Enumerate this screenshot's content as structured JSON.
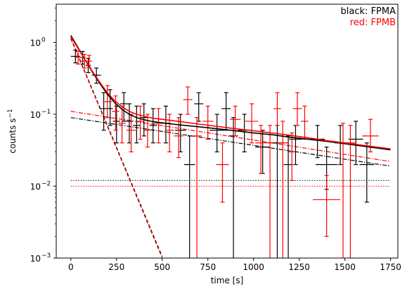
{
  "chart_data": {
    "type": "scatter",
    "xlabel": "time [s]",
    "ylabel": "counts s",
    "ylabel_sup": "−1",
    "xlim": [
      -80,
      1790
    ],
    "ylim": [
      0.001,
      3.4
    ],
    "yscale": "log",
    "grid": false,
    "x_ticks": [
      0,
      250,
      500,
      750,
      1000,
      1250,
      1500,
      1750
    ],
    "x_tick_labels": [
      "0",
      "250",
      "500",
      "750",
      "1000",
      "1250",
      "1500",
      "1750"
    ],
    "y_ticks": [
      0.001,
      0.01,
      0.1,
      1
    ],
    "y_tick_base": [
      "10",
      "10",
      "10",
      "10"
    ],
    "y_tick_exp": [
      "−3",
      "−2",
      "−1",
      "0"
    ],
    "legend": {
      "placement": "top-right",
      "entries": [
        {
          "text": "black: FPMA",
          "color": "#000000"
        },
        {
          "text": "red: FPMB",
          "color": "#ff0000"
        }
      ]
    },
    "series": [
      {
        "color": "#000000",
        "points": [
          {
            "x": 25,
            "y": 0.64,
            "xerr": 25,
            "ylo": 0.52,
            "yhi": 0.78
          },
          {
            "x": 65,
            "y": 0.62,
            "xerr": 15,
            "ylo": 0.5,
            "yhi": 0.75
          },
          {
            "x": 95,
            "y": 0.48,
            "xerr": 15,
            "ylo": 0.38,
            "yhi": 0.6
          },
          {
            "x": 140,
            "y": 0.35,
            "xerr": 25,
            "ylo": 0.27,
            "yhi": 0.44
          },
          {
            "x": 180,
            "y": 0.12,
            "xerr": 20,
            "ylo": 0.06,
            "yhi": 0.2
          },
          {
            "x": 215,
            "y": 0.12,
            "xerr": 15,
            "ylo": 0.07,
            "yhi": 0.22
          },
          {
            "x": 250,
            "y": 0.08,
            "xerr": 20,
            "ylo": 0.04,
            "yhi": 0.13
          },
          {
            "x": 290,
            "y": 0.14,
            "xerr": 20,
            "ylo": 0.08,
            "yhi": 0.2
          },
          {
            "x": 320,
            "y": 0.08,
            "xerr": 20,
            "ylo": 0.04,
            "yhi": 0.14
          },
          {
            "x": 360,
            "y": 0.07,
            "xerr": 20,
            "ylo": 0.04,
            "yhi": 0.13
          },
          {
            "x": 400,
            "y": 0.09,
            "xerr": 20,
            "ylo": 0.05,
            "yhi": 0.14
          },
          {
            "x": 450,
            "y": 0.07,
            "xerr": 20,
            "ylo": 0.04,
            "yhi": 0.12
          },
          {
            "x": 520,
            "y": 0.075,
            "xerr": 25,
            "ylo": 0.04,
            "yhi": 0.13
          },
          {
            "x": 600,
            "y": 0.06,
            "xerr": 30,
            "ylo": 0.03,
            "yhi": 0.1
          },
          {
            "x": 650,
            "y": 0.02,
            "xerr": 30,
            "ylo": 0.001,
            "yhi": 0.05
          },
          {
            "x": 700,
            "y": 0.14,
            "xerr": 25,
            "ylo": 0.08,
            "yhi": 0.2
          },
          {
            "x": 800,
            "y": 0.06,
            "xerr": 40,
            "ylo": 0.03,
            "yhi": 0.1
          },
          {
            "x": 850,
            "y": 0.12,
            "xerr": 25,
            "ylo": 0.06,
            "yhi": 0.2
          },
          {
            "x": 890,
            "y": 0.05,
            "xerr": 25,
            "ylo": 0.001,
            "yhi": 0.09
          },
          {
            "x": 950,
            "y": 0.06,
            "xerr": 35,
            "ylo": 0.03,
            "yhi": 0.1
          },
          {
            "x": 1050,
            "y": 0.035,
            "xerr": 40,
            "ylo": 0.015,
            "yhi": 0.06
          },
          {
            "x": 1130,
            "y": 0.04,
            "xerr": 40,
            "ylo": 0.001,
            "yhi": 0.07
          },
          {
            "x": 1190,
            "y": 0.02,
            "xerr": 25,
            "ylo": 0.001,
            "yhi": 0.05
          },
          {
            "x": 1230,
            "y": 0.045,
            "xerr": 35,
            "ylo": 0.02,
            "yhi": 0.07
          },
          {
            "x": 1350,
            "y": 0.045,
            "xerr": 40,
            "ylo": 0.025,
            "yhi": 0.07
          },
          {
            "x": 1400,
            "y": 0.02,
            "xerr": 60,
            "ylo": 0.009,
            "yhi": 0.035
          },
          {
            "x": 1475,
            "y": 0.04,
            "xerr": 30,
            "ylo": 0.02,
            "yhi": 0.07
          },
          {
            "x": 1560,
            "y": 0.045,
            "xerr": 40,
            "ylo": 0.02,
            "yhi": 0.08
          },
          {
            "x": 1620,
            "y": 0.02,
            "xerr": 40,
            "ylo": 0.006,
            "yhi": 0.04
          }
        ],
        "model_total": {
          "x": [
            0,
            40,
            80,
            120,
            160,
            200,
            240,
            280,
            320,
            360,
            400,
            450,
            500,
            600,
            700,
            800,
            900,
            1000,
            1100,
            1200,
            1300,
            1400,
            1500,
            1600,
            1750
          ],
          "y": [
            1.25,
            0.84,
            0.56,
            0.38,
            0.265,
            0.19,
            0.145,
            0.117,
            0.1,
            0.09,
            0.084,
            0.079,
            0.076,
            0.071,
            0.067,
            0.063,
            0.059,
            0.055,
            0.052,
            0.048,
            0.045,
            0.042,
            0.039,
            0.036,
            0.032
          ]
        },
        "model_steep": {
          "x": [
            0,
            500
          ],
          "y": [
            1.15,
            0.00105
          ]
        },
        "model_shallow": {
          "x": [
            0,
            1750
          ],
          "y": [
            0.09,
            0.019
          ]
        },
        "background": {
          "x": [
            0,
            1750
          ],
          "y": [
            0.012,
            0.012
          ]
        }
      },
      {
        "color": "#ff0000",
        "points": [
          {
            "x": 40,
            "y": 0.62,
            "xerr": 20,
            "ylo": 0.5,
            "yhi": 0.75
          },
          {
            "x": 75,
            "y": 0.55,
            "xerr": 20,
            "ylo": 0.44,
            "yhi": 0.68
          },
          {
            "x": 100,
            "y": 0.55,
            "xerr": 15,
            "ylo": 0.45,
            "yhi": 0.66
          },
          {
            "x": 200,
            "y": 0.15,
            "xerr": 25,
            "ylo": 0.09,
            "yhi": 0.25
          },
          {
            "x": 245,
            "y": 0.11,
            "xerr": 20,
            "ylo": 0.06,
            "yhi": 0.18
          },
          {
            "x": 280,
            "y": 0.075,
            "xerr": 20,
            "ylo": 0.04,
            "yhi": 0.13
          },
          {
            "x": 330,
            "y": 0.06,
            "xerr": 25,
            "ylo": 0.03,
            "yhi": 0.1
          },
          {
            "x": 380,
            "y": 0.08,
            "xerr": 20,
            "ylo": 0.045,
            "yhi": 0.13
          },
          {
            "x": 420,
            "y": 0.06,
            "xerr": 20,
            "ylo": 0.035,
            "yhi": 0.1
          },
          {
            "x": 480,
            "y": 0.075,
            "xerr": 25,
            "ylo": 0.04,
            "yhi": 0.12
          },
          {
            "x": 540,
            "y": 0.06,
            "xerr": 25,
            "ylo": 0.03,
            "yhi": 0.1
          },
          {
            "x": 590,
            "y": 0.05,
            "xerr": 25,
            "ylo": 0.025,
            "yhi": 0.09
          },
          {
            "x": 640,
            "y": 0.16,
            "xerr": 25,
            "ylo": 0.1,
            "yhi": 0.24
          },
          {
            "x": 690,
            "y": 0.05,
            "xerr": 25,
            "ylo": 0.001,
            "yhi": 0.09
          },
          {
            "x": 750,
            "y": 0.08,
            "xerr": 30,
            "ylo": 0.045,
            "yhi": 0.13
          },
          {
            "x": 830,
            "y": 0.02,
            "xerr": 35,
            "ylo": 0.006,
            "yhi": 0.04
          },
          {
            "x": 900,
            "y": 0.085,
            "xerr": 30,
            "ylo": 0.05,
            "yhi": 0.13
          },
          {
            "x": 990,
            "y": 0.08,
            "xerr": 35,
            "ylo": 0.04,
            "yhi": 0.14
          },
          {
            "x": 1040,
            "y": 0.04,
            "xerr": 30,
            "ylo": 0.015,
            "yhi": 0.07
          },
          {
            "x": 1090,
            "y": 0.04,
            "xerr": 20,
            "ylo": 0.001,
            "yhi": 0.07
          },
          {
            "x": 1130,
            "y": 0.12,
            "xerr": 20,
            "ylo": 0.07,
            "yhi": 0.2
          },
          {
            "x": 1160,
            "y": 0.04,
            "xerr": 30,
            "ylo": 0.001,
            "yhi": 0.08
          },
          {
            "x": 1210,
            "y": 0.03,
            "xerr": 20,
            "ylo": 0.012,
            "yhi": 0.055
          },
          {
            "x": 1240,
            "y": 0.12,
            "xerr": 25,
            "ylo": 0.07,
            "yhi": 0.2
          },
          {
            "x": 1280,
            "y": 0.08,
            "xerr": 20,
            "ylo": 0.045,
            "yhi": 0.13
          },
          {
            "x": 1400,
            "y": 0.0065,
            "xerr": 75,
            "ylo": 0.002,
            "yhi": 0.014
          },
          {
            "x": 1490,
            "y": 0.04,
            "xerr": 30,
            "ylo": 0.001,
            "yhi": 0.075
          },
          {
            "x": 1530,
            "y": 0.04,
            "xerr": 30,
            "ylo": 0.001,
            "yhi": 0.07
          },
          {
            "x": 1640,
            "y": 0.05,
            "xerr": 45,
            "ylo": 0.03,
            "yhi": 0.085
          }
        ],
        "model_total": {
          "x": [
            0,
            40,
            80,
            120,
            160,
            200,
            240,
            280,
            320,
            360,
            400,
            450,
            500,
            600,
            700,
            800,
            900,
            1000,
            1100,
            1200,
            1300,
            1400,
            1500,
            1600,
            1750
          ],
          "y": [
            1.2,
            0.82,
            0.56,
            0.39,
            0.275,
            0.2,
            0.155,
            0.127,
            0.11,
            0.1,
            0.094,
            0.088,
            0.085,
            0.079,
            0.073,
            0.068,
            0.063,
            0.059,
            0.055,
            0.051,
            0.047,
            0.043,
            0.04,
            0.037,
            0.033
          ]
        },
        "model_steep": {
          "x": [
            0,
            500
          ],
          "y": [
            1.12,
            0.00095
          ]
        },
        "model_shallow": {
          "x": [
            0,
            1750
          ],
          "y": [
            0.11,
            0.022
          ]
        },
        "background": {
          "x": [
            0,
            1750
          ],
          "y": [
            0.01,
            0.01
          ]
        }
      }
    ]
  }
}
